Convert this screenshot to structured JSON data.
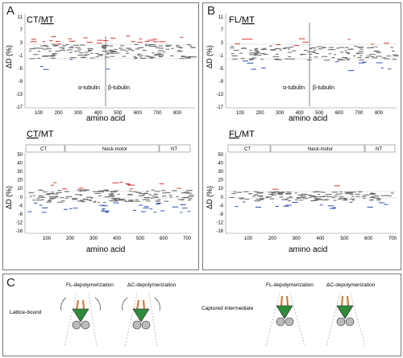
{
  "panels": {
    "A": {
      "label": "A",
      "top": {
        "title_prefix": "CT/",
        "title_underlined": "MT",
        "ylabel": "ΔD (%)",
        "xlabel": "amino acid",
        "yticks": [
          "11",
          "7",
          "3",
          "-1",
          "-5",
          "-9",
          "-13",
          "-17"
        ],
        "xticks": [
          "100",
          "200",
          "300",
          "400",
          "500",
          "600",
          "700",
          "800"
        ],
        "region_left": "α-tubulin",
        "region_right": "β-tubulin"
      },
      "bottom": {
        "title_underlined": "CT",
        "title_suffix": "/MT",
        "ylabel": "ΔD (%)",
        "xlabel": "amino acid",
        "yticks": [
          "50",
          "40",
          "30",
          "20",
          "10",
          "0",
          "-4",
          "-8",
          "-12",
          "-16"
        ],
        "xticks": [
          "100",
          "200",
          "300",
          "400",
          "500",
          "600",
          "700"
        ],
        "domains": [
          "CT",
          "Neck-motor",
          "NT"
        ]
      }
    },
    "B": {
      "label": "B",
      "top": {
        "title_prefix": "FL/",
        "title_underlined": "MT",
        "ylabel": "ΔD (%)",
        "xlabel": "amino acid",
        "yticks": [
          "11",
          "7",
          "3",
          "-1",
          "-5",
          "-9",
          "-13",
          "-17"
        ],
        "xticks": [
          "100",
          "200",
          "300",
          "400",
          "500",
          "600",
          "700",
          "800"
        ],
        "region_left": "α-tubulin",
        "region_right": "β-tubulin"
      },
      "bottom": {
        "title_underlined": "FL",
        "title_suffix": "/MT",
        "ylabel": "ΔD (%)",
        "xlabel": "amino acid",
        "yticks": [
          "50",
          "40",
          "30",
          "20",
          "10",
          "0",
          "-4",
          "-8",
          "-12",
          "-16"
        ],
        "xticks": [
          "100",
          "200",
          "300",
          "400",
          "500",
          "600",
          "700"
        ],
        "domains": [
          "CT",
          "Neck-motor",
          "NT"
        ]
      }
    },
    "C": {
      "label": "C",
      "fl_depol": "FL-depolymerization",
      "dc_depol": "ΔC-depolymerization",
      "fl_depol_2": "FL-depolymerization",
      "dc_depol_2": "ΔC-depolymerization",
      "lattice_bound": "Lattice-bound",
      "captured": "Captured intermediate"
    }
  },
  "colors": {
    "positive": "#e03030",
    "negative": "#3050c0",
    "neutral": "#666666",
    "kinesin": "#2e8b3a",
    "neck": "#e07020",
    "tubulin": "#bbbbbb"
  },
  "chart_data": [
    {
      "type": "scatter",
      "panel": "A-top",
      "y_range": [
        -17,
        11
      ],
      "x_range": [
        0,
        900
      ],
      "series": [
        {
          "name": "positive"
        },
        {
          "name": "negative"
        },
        {
          "name": "neutral"
        }
      ]
    },
    {
      "type": "scatter",
      "panel": "A-bottom",
      "y_range": [
        -16,
        50
      ],
      "x_range": [
        0,
        700
      ],
      "series": [
        {
          "name": "positive"
        },
        {
          "name": "negative"
        },
        {
          "name": "neutral"
        }
      ]
    },
    {
      "type": "scatter",
      "panel": "B-top",
      "y_range": [
        -17,
        11
      ],
      "x_range": [
        0,
        900
      ],
      "series": [
        {
          "name": "positive"
        },
        {
          "name": "negative"
        },
        {
          "name": "neutral"
        }
      ]
    },
    {
      "type": "scatter",
      "panel": "B-bottom",
      "y_range": [
        -16,
        50
      ],
      "x_range": [
        0,
        700
      ],
      "series": [
        {
          "name": "positive"
        },
        {
          "name": "negative"
        },
        {
          "name": "neutral"
        }
      ]
    }
  ]
}
